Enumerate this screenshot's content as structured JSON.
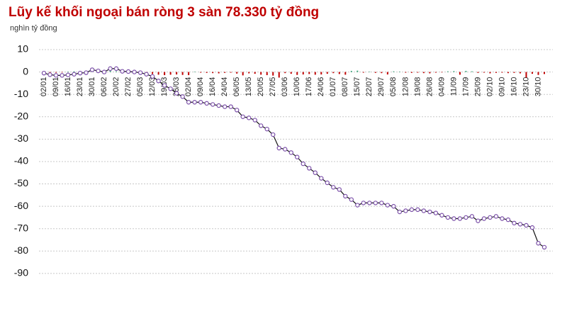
{
  "chart_data": {
    "type": "line",
    "title": "Lũy kế khối ngoại bán ròng 3 sàn 78.330 tỷ đồng",
    "subtitle": "nghìn tỷ đồng",
    "categories": [
      "02/01",
      null,
      "09/01",
      null,
      "16/01",
      null,
      "23/01",
      null,
      "30/01",
      null,
      "06/02",
      null,
      "20/02",
      null,
      "27/02",
      null,
      "05/03",
      null,
      "12/03",
      null,
      "19/03",
      null,
      "26/03",
      null,
      "02/04",
      null,
      "09/04",
      null,
      "16/04",
      null,
      "24/04",
      null,
      "06/05",
      null,
      "13/05",
      null,
      "20/05",
      null,
      "27/05",
      null,
      "03/06",
      null,
      "10/06",
      null,
      "17/06",
      null,
      "24/06",
      null,
      "01/07",
      null,
      "08/07",
      null,
      "15/07",
      null,
      "22/07",
      null,
      "29/07",
      null,
      "05/08",
      null,
      "12/08",
      null,
      "19/08",
      null,
      "26/08",
      null,
      "04/09",
      null,
      "11/09",
      null,
      "17/09",
      null,
      "25/09",
      null,
      "02/10",
      null,
      "09/10",
      null,
      "16/10",
      null,
      "23/10",
      null,
      "30/10",
      null
    ],
    "series": [
      {
        "type": "bar",
        "negative_color": "#c00000",
        "positive_color": "#3aa57a",
        "values": [
          -0.3,
          -0.4,
          -0.3,
          -0.2,
          0.2,
          0.3,
          0.4,
          0.2,
          0.5,
          -0.3,
          -0.5,
          0.6,
          0.3,
          -0.6,
          -0.4,
          -0.2,
          -0.3,
          -0.6,
          -0.9,
          -1.2,
          -1.4,
          -1.2,
          -1.1,
          -1.3,
          -1.4,
          0.2,
          -0.3,
          -0.4,
          -0.5,
          -0.6,
          -0.4,
          -0.3,
          -0.7,
          -1.5,
          -0.6,
          -0.8,
          -1.2,
          -1.4,
          -1.6,
          -2.5,
          -0.5,
          -0.8,
          -1.3,
          -1.1,
          -0.9,
          -1.2,
          -1.1,
          -0.8,
          -0.5,
          -0.9,
          -1.2,
          0.5,
          0.6,
          -0.3,
          0.2,
          -0.4,
          -0.5,
          -1.1,
          0.3,
          0.2,
          -0.3,
          -0.4,
          -0.3,
          -0.5,
          -0.6,
          -0.3,
          -0.2,
          0.3,
          0.4,
          -1.2,
          0.5,
          0.3,
          -0.4,
          -0.3,
          -0.6,
          -0.4,
          -0.3,
          -0.5,
          -0.4,
          -0.6,
          -2.5,
          -0.8,
          -1.3,
          -0.9
        ]
      },
      {
        "type": "line",
        "line_color": "#111111",
        "marker_color": "#7b4fa8",
        "values": [
          -0.5,
          -1.2,
          -1.5,
          -1.5,
          -1.3,
          -1,
          -0.5,
          -0.3,
          1,
          0.5,
          0,
          1.5,
          1.5,
          0.3,
          0.2,
          0,
          -0.3,
          -1,
          -2,
          -4,
          -6,
          -7.5,
          -9.5,
          -11,
          -13.5,
          -13.5,
          -13.5,
          -14,
          -14.5,
          -15,
          -15.5,
          -15.5,
          -17,
          -20,
          -20.5,
          -21.5,
          -24,
          -25.5,
          -28,
          -34,
          -34.5,
          -36,
          -38,
          -41,
          -43,
          -45,
          -47.5,
          -49.5,
          -51.5,
          -52.5,
          -55.5,
          -57,
          -59.5,
          -58.5,
          -58.5,
          -58.5,
          -58.5,
          -59.5,
          -60,
          -62.5,
          -62,
          -61.5,
          -61.5,
          -62,
          -62.5,
          -63,
          -64,
          -65,
          -65.5,
          -65.5,
          -65,
          -64.5,
          -66.5,
          -65.5,
          -65,
          -64.5,
          -65.5,
          -66,
          -67.5,
          -68,
          -68.5,
          -69.5,
          -76.5,
          -78.3
        ]
      }
    ],
    "ylim": [
      -97,
      12
    ],
    "yticks": [
      10,
      0,
      -10,
      -20,
      -30,
      -40,
      -50,
      -60,
      -70,
      -80,
      -90
    ],
    "grid": true
  }
}
